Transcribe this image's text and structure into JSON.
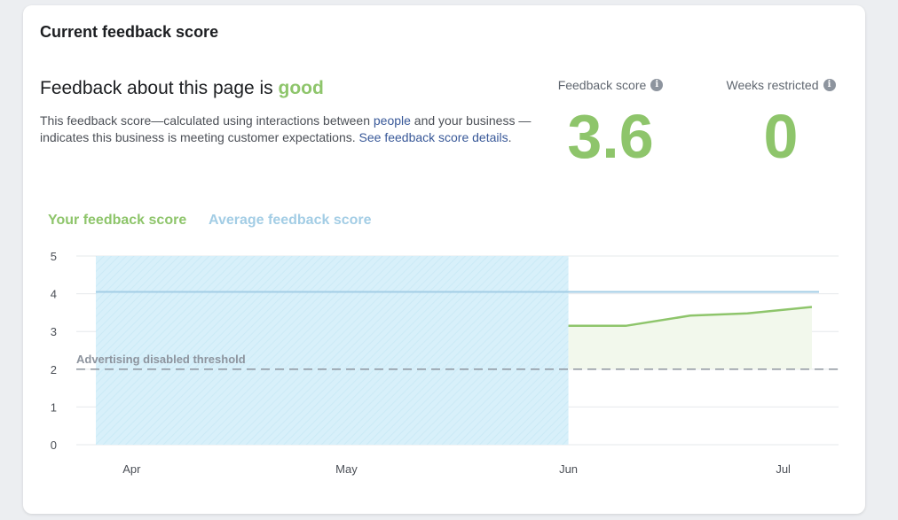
{
  "card": {
    "title": "Current feedback score"
  },
  "summary": {
    "headline_prefix": "Feedback about this page is ",
    "headline_status": "good",
    "desc_part1": "This feedback score—calculated using interactions between ",
    "desc_link_people": "people",
    "desc_part2": " and your business —indicates this business is meeting customer expectations. ",
    "desc_link_details": "See feedback score details",
    "desc_part3": "."
  },
  "metrics": {
    "feedback_score_label": "Feedback score",
    "feedback_score_value": "3.6",
    "weeks_restricted_label": "Weeks restricted",
    "weeks_restricted_value": "0",
    "info_icon": "info-icon"
  },
  "legend": {
    "your_label": "Your feedback score",
    "average_label": "Average feedback score"
  },
  "colors": {
    "good": "#8ec56b",
    "your_score": "#8ec56b",
    "your_fill": "#f2f8ec",
    "average_line": "#a3cde5",
    "restricted_region": "#d8f0fa",
    "threshold": "#8d949e",
    "grid": "#e6e8eb"
  },
  "chart_data": {
    "type": "line",
    "y_ticks": [
      "0",
      "1",
      "2",
      "3",
      "4",
      "5"
    ],
    "ylim": [
      0,
      5
    ],
    "x_ticks": [
      "Apr",
      "May",
      "Jun",
      "Jul"
    ],
    "x_tick_days": [
      0,
      30,
      61,
      91
    ],
    "xlim_days": [
      -5,
      96
    ],
    "average_score": 4.05,
    "no_data_region_days": [
      -5,
      61
    ],
    "threshold": {
      "value": 2,
      "label": "Advertising disabled threshold"
    },
    "series": [
      {
        "name": "Your feedback score",
        "x_days": [
          61,
          69,
          78,
          86,
          95
        ],
        "values": [
          3.15,
          3.15,
          3.42,
          3.48,
          3.65
        ]
      }
    ]
  }
}
